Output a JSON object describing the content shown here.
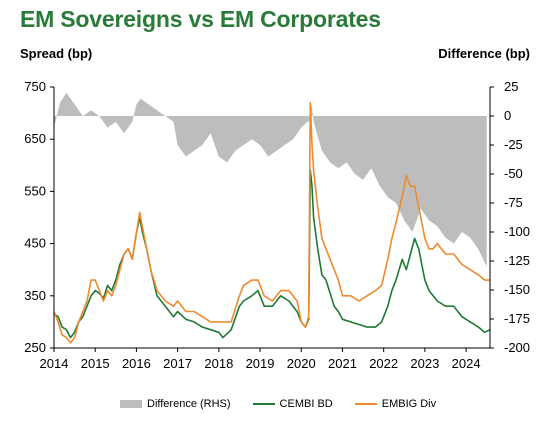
{
  "header": {
    "title": "EM Sovereigns vs EM Corporates",
    "left_axis_title": "Spread (bp)",
    "right_axis_title": "Difference (bp)"
  },
  "colors": {
    "difference": "#bdbdbd",
    "cembi": "#1e7a36",
    "embig": "#ee8a2e",
    "title": "#2a7a3a"
  },
  "chart_data": {
    "type": "line",
    "x_ticks": [
      "2014",
      "2015",
      "2016",
      "2017",
      "2018",
      "2019",
      "2020",
      "2021",
      "2022",
      "2023",
      "2024"
    ],
    "y_left_ticks": [
      250,
      350,
      450,
      550,
      650,
      750
    ],
    "y_right_ticks": [
      25,
      0,
      -25,
      -50,
      -75,
      -100,
      -125,
      -150,
      -175,
      -200
    ],
    "ylim_left": [
      250,
      750
    ],
    "ylim_right": [
      -200,
      25
    ],
    "xlim": [
      2014.0,
      2024.58
    ],
    "legend_position": "bottom",
    "grid": false,
    "series": [
      {
        "name": "Difference (RHS)",
        "type": "area",
        "axis": "right",
        "x": [
          2014.0,
          2014.15,
          2014.3,
          2014.5,
          2014.7,
          2014.9,
          2015.1,
          2015.3,
          2015.5,
          2015.7,
          2015.9,
          2016.0,
          2016.1,
          2016.3,
          2016.5,
          2016.7,
          2016.9,
          2017.0,
          2017.2,
          2017.4,
          2017.6,
          2017.8,
          2018.0,
          2018.2,
          2018.4,
          2018.6,
          2018.8,
          2019.0,
          2019.2,
          2019.4,
          2019.6,
          2019.8,
          2020.0,
          2020.15,
          2020.2,
          2020.25,
          2020.3,
          2020.5,
          2020.7,
          2020.9,
          2021.1,
          2021.3,
          2021.5,
          2021.7,
          2021.9,
          2022.1,
          2022.3,
          2022.5,
          2022.7,
          2022.9,
          2023.1,
          2023.3,
          2023.5,
          2023.7,
          2023.9,
          2024.1,
          2024.3,
          2024.5
        ],
        "values": [
          -10,
          12,
          20,
          10,
          0,
          5,
          0,
          -10,
          -5,
          -15,
          -5,
          10,
          15,
          10,
          5,
          0,
          -5,
          -25,
          -35,
          -30,
          -25,
          -15,
          -35,
          -40,
          -30,
          -25,
          -20,
          -25,
          -35,
          -30,
          -25,
          -20,
          -10,
          -5,
          -5,
          10,
          -5,
          -30,
          -40,
          -45,
          -40,
          -50,
          -55,
          -45,
          -60,
          -70,
          -75,
          -90,
          -100,
          -80,
          -90,
          -95,
          -105,
          -110,
          -100,
          -105,
          -115,
          -130
        ]
      },
      {
        "name": "CEMBI BD",
        "type": "line",
        "axis": "left",
        "x": [
          2014.0,
          2014.1,
          2014.2,
          2014.3,
          2014.4,
          2014.5,
          2014.6,
          2014.7,
          2014.8,
          2014.9,
          2015.0,
          2015.1,
          2015.2,
          2015.3,
          2015.4,
          2015.5,
          2015.6,
          2015.7,
          2015.8,
          2015.9,
          2016.0,
          2016.08,
          2016.15,
          2016.25,
          2016.35,
          2016.5,
          2016.7,
          2016.9,
          2017.0,
          2017.2,
          2017.4,
          2017.6,
          2017.8,
          2018.0,
          2018.1,
          2018.3,
          2018.5,
          2018.6,
          2018.8,
          2018.95,
          2019.1,
          2019.3,
          2019.5,
          2019.7,
          2019.9,
          2020.0,
          2020.1,
          2020.18,
          2020.22,
          2020.26,
          2020.3,
          2020.4,
          2020.5,
          2020.6,
          2020.8,
          2020.9,
          2021.0,
          2021.2,
          2021.4,
          2021.6,
          2021.8,
          2021.95,
          2022.1,
          2022.2,
          2022.3,
          2022.45,
          2022.55,
          2022.65,
          2022.75,
          2022.85,
          2023.0,
          2023.1,
          2023.2,
          2023.3,
          2023.5,
          2023.7,
          2023.9,
          2024.1,
          2024.3,
          2024.45,
          2024.58
        ],
        "values": [
          315,
          310,
          290,
          285,
          270,
          280,
          300,
          310,
          330,
          350,
          360,
          355,
          345,
          370,
          360,
          380,
          410,
          430,
          440,
          420,
          470,
          500,
          470,
          440,
          400,
          350,
          330,
          310,
          320,
          305,
          300,
          290,
          285,
          280,
          270,
          285,
          330,
          340,
          350,
          360,
          330,
          330,
          350,
          340,
          320,
          300,
          290,
          305,
          590,
          560,
          500,
          440,
          390,
          380,
          330,
          320,
          305,
          300,
          295,
          290,
          290,
          300,
          330,
          360,
          380,
          420,
          400,
          430,
          460,
          440,
          380,
          360,
          350,
          340,
          330,
          330,
          310,
          300,
          290,
          280,
          285
        ]
      },
      {
        "name": "EMBIG Div",
        "type": "line",
        "axis": "left",
        "x": [
          2014.0,
          2014.1,
          2014.2,
          2014.3,
          2014.4,
          2014.5,
          2014.6,
          2014.7,
          2014.8,
          2014.9,
          2015.0,
          2015.1,
          2015.2,
          2015.3,
          2015.4,
          2015.5,
          2015.6,
          2015.7,
          2015.8,
          2015.9,
          2016.0,
          2016.08,
          2016.15,
          2016.25,
          2016.35,
          2016.5,
          2016.7,
          2016.9,
          2017.0,
          2017.2,
          2017.4,
          2017.6,
          2017.8,
          2018.0,
          2018.1,
          2018.3,
          2018.5,
          2018.6,
          2018.8,
          2018.95,
          2019.1,
          2019.3,
          2019.5,
          2019.7,
          2019.9,
          2020.0,
          2020.1,
          2020.18,
          2020.22,
          2020.26,
          2020.3,
          2020.4,
          2020.5,
          2020.6,
          2020.8,
          2020.9,
          2021.0,
          2021.2,
          2021.4,
          2021.6,
          2021.8,
          2021.95,
          2022.1,
          2022.2,
          2022.3,
          2022.45,
          2022.55,
          2022.65,
          2022.75,
          2022.85,
          2023.0,
          2023.1,
          2023.2,
          2023.3,
          2023.5,
          2023.7,
          2023.9,
          2024.1,
          2024.3,
          2024.45,
          2024.58
        ],
        "values": [
          320,
          300,
          275,
          270,
          260,
          270,
          300,
          320,
          340,
          380,
          380,
          360,
          340,
          360,
          350,
          370,
          400,
          430,
          440,
          420,
          470,
          510,
          480,
          440,
          400,
          360,
          340,
          330,
          340,
          320,
          320,
          310,
          300,
          300,
          300,
          300,
          350,
          370,
          380,
          380,
          350,
          340,
          360,
          360,
          340,
          300,
          290,
          310,
          720,
          640,
          590,
          520,
          460,
          440,
          400,
          380,
          350,
          350,
          340,
          350,
          360,
          370,
          420,
          460,
          490,
          540,
          580,
          560,
          560,
          520,
          460,
          440,
          440,
          450,
          430,
          430,
          410,
          400,
          390,
          380,
          380
        ]
      }
    ]
  }
}
